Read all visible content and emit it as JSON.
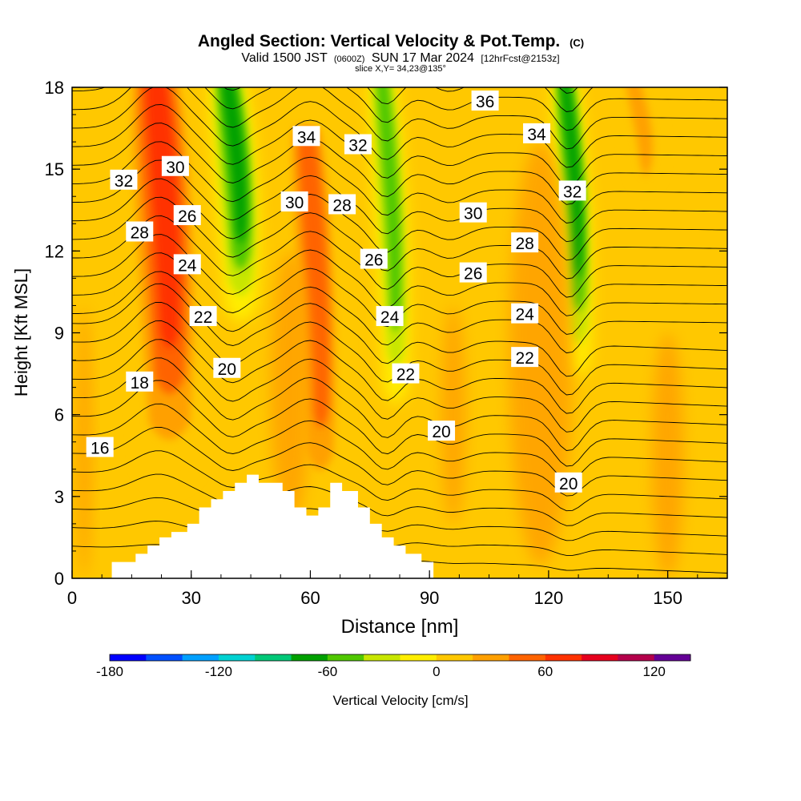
{
  "chart_data": {
    "type": "heatmap",
    "title": "Angled Section: Vertical Velocity & Pot.Temp.",
    "title_mark": "(C)",
    "subtitle_parts": [
      "Valid 1500 JST",
      "(0600Z)",
      "SUN 17 Mar 2024",
      "[12hrFcst@2153z]"
    ],
    "slice_label": "slice X,Y= 34,23@135°",
    "xlabel": "Distance [nm]",
    "ylabel": "Height [Kft MSL]",
    "xlim": [
      0,
      165
    ],
    "ylim": [
      0,
      18
    ],
    "x_ticks": [
      0,
      30,
      60,
      90,
      120,
      150
    ],
    "y_ticks": [
      0,
      3,
      6,
      9,
      12,
      15,
      18
    ],
    "colorbar": {
      "label": "Vertical Velocity [cm/s]",
      "tick_labels": [
        -180,
        -120,
        -60,
        0,
        60,
        120
      ],
      "bin_edges": [
        -180,
        -160,
        -140,
        -120,
        -100,
        -80,
        -60,
        -40,
        -20,
        0,
        20,
        40,
        60,
        80,
        100,
        120,
        140
      ],
      "colors": [
        "#0000ff",
        "#0050ff",
        "#00a0ff",
        "#00d2d2",
        "#00c878",
        "#00a000",
        "#50c800",
        "#c8e600",
        "#ffee00",
        "#ffc800",
        "#ffa000",
        "#ff6400",
        "#ff3200",
        "#e6001e",
        "#b4004b",
        "#640096"
      ]
    },
    "vertical_velocity_bands": [
      {
        "x_center": 22,
        "x_width": 13,
        "peak_cm_s": 70,
        "height_range": [
          4,
          18
        ]
      },
      {
        "x_center": 40,
        "x_width": 8,
        "peak_cm_s": -70,
        "height_range": [
          10,
          18
        ]
      },
      {
        "x_center": 60,
        "x_width": 9,
        "peak_cm_s": 50,
        "height_range": [
          3,
          16
        ]
      },
      {
        "x_center": 79,
        "x_width": 6,
        "peak_cm_s": -60,
        "height_range": [
          7,
          18
        ]
      },
      {
        "x_center": 125,
        "x_width": 6,
        "peak_cm_s": -70,
        "height_range": [
          8,
          18
        ]
      },
      {
        "x_center": 142,
        "x_width": 5,
        "peak_cm_s": 40,
        "height_range": [
          15,
          18
        ]
      }
    ],
    "theta_contours": [
      {
        "value": 16,
        "label_at": [
          7,
          4.8
        ]
      },
      {
        "value": 18,
        "label_at": [
          17,
          7.2
        ]
      },
      {
        "value": 20,
        "label_at": [
          39,
          7.7
        ]
      },
      {
        "value": 20,
        "label_at": [
          93,
          5.4
        ]
      },
      {
        "value": 20,
        "label_at": [
          125,
          3.5
        ]
      },
      {
        "value": 22,
        "label_at": [
          33,
          9.6
        ]
      },
      {
        "value": 22,
        "label_at": [
          84,
          7.5
        ]
      },
      {
        "value": 22,
        "label_at": [
          114,
          8.1
        ]
      },
      {
        "value": 24,
        "label_at": [
          29,
          11.5
        ]
      },
      {
        "value": 24,
        "label_at": [
          80,
          9.6
        ]
      },
      {
        "value": 24,
        "label_at": [
          114,
          9.7
        ]
      },
      {
        "value": 26,
        "label_at": [
          29,
          13.3
        ]
      },
      {
        "value": 26,
        "label_at": [
          76,
          11.7
        ]
      },
      {
        "value": 26,
        "label_at": [
          101,
          11.2
        ]
      },
      {
        "value": 28,
        "label_at": [
          17,
          12.7
        ]
      },
      {
        "value": 28,
        "label_at": [
          68,
          13.7
        ]
      },
      {
        "value": 28,
        "label_at": [
          114,
          12.3
        ]
      },
      {
        "value": 30,
        "label_at": [
          26,
          15.1
        ]
      },
      {
        "value": 30,
        "label_at": [
          56,
          13.8
        ]
      },
      {
        "value": 30,
        "label_at": [
          101,
          13.4
        ]
      },
      {
        "value": 32,
        "label_at": [
          13,
          14.6
        ]
      },
      {
        "value": 32,
        "label_at": [
          72,
          15.9
        ]
      },
      {
        "value": 32,
        "label_at": [
          126,
          14.2
        ]
      },
      {
        "value": 34,
        "label_at": [
          59,
          16.2
        ]
      },
      {
        "value": 34,
        "label_at": [
          117,
          16.3
        ]
      },
      {
        "value": 36,
        "label_at": [
          104,
          17.5
        ]
      }
    ],
    "terrain": {
      "x": [
        10,
        10,
        16,
        16,
        19,
        19,
        22,
        22,
        25,
        25,
        29,
        29,
        32,
        32,
        35,
        35,
        38,
        38,
        41,
        41,
        44,
        44,
        47,
        47,
        53,
        53,
        56,
        56,
        59,
        59,
        62,
        62,
        65,
        65,
        68,
        68,
        72,
        72,
        75,
        75,
        78,
        78,
        81,
        81,
        84,
        84,
        88,
        88,
        91
      ],
      "y": [
        0.3,
        0.6,
        0.6,
        0.9,
        0.9,
        1.2,
        1.2,
        1.5,
        1.5,
        1.7,
        1.7,
        2.0,
        2.0,
        2.6,
        2.6,
        2.9,
        2.9,
        3.2,
        3.2,
        3.5,
        3.5,
        3.8,
        3.8,
        3.5,
        3.5,
        3.2,
        3.2,
        2.6,
        2.6,
        2.3,
        2.3,
        2.6,
        2.6,
        3.5,
        3.5,
        3.2,
        3.2,
        2.6,
        2.6,
        2.0,
        2.0,
        1.5,
        1.5,
        1.2,
        1.2,
        0.9,
        0.9,
        0.6,
        0.6
      ]
    }
  }
}
